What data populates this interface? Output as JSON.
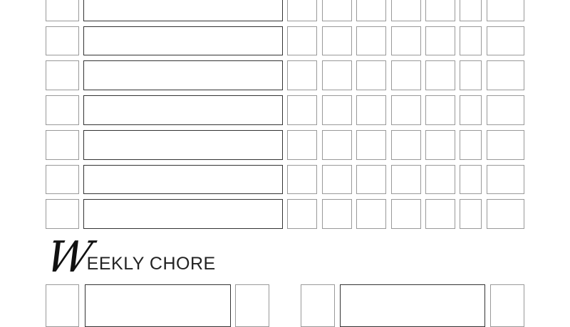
{
  "title": {
    "initial": "W",
    "rest": "EEKLY CHORE"
  },
  "grid": {
    "rows": 7,
    "columns": [
      "checkbox",
      "chore",
      "day1",
      "day2",
      "day3",
      "day4",
      "day5",
      "day6",
      "day7"
    ]
  },
  "weekly_section": {
    "pairs": 2
  },
  "colors": {
    "box_border": "#999999",
    "chore_border": "#333333"
  }
}
